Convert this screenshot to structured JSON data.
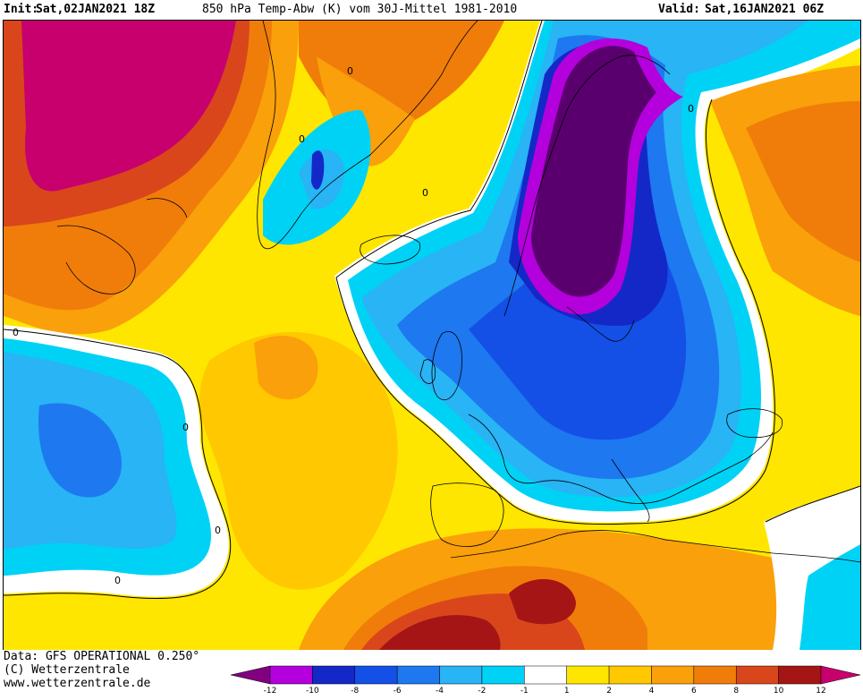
{
  "header": {
    "init_label": "Init:",
    "init_datetime": "Sat,02JAN2021 18Z",
    "product": "850 hPa Temp-Abw (K) vom 30J-Mittel 1981-2010",
    "valid_label": "Valid:",
    "valid_datetime": "Sat,16JAN2021 06Z"
  },
  "footer": {
    "data_source": "Data: GFS OPERATIONAL 0.250°",
    "copyright": "(C) Wetterzentrale",
    "website": "www.wetterzentrale.de"
  },
  "map": {
    "contour_label": "0",
    "palette": {
      "magenta": "#c8006e",
      "dark_red": "#a51515",
      "red_orange": "#d9461c",
      "orange": "#f07d0a",
      "light_orange": "#faa00a",
      "amber": "#ffc800",
      "yellow": "#ffe600",
      "near_zero": "#ffffff",
      "cyan": "#00d2f5",
      "light_blue": "#28b4f5",
      "blue": "#1e78f0",
      "mid_blue": "#1450e6",
      "dark_blue": "#1428c8",
      "violet": "#b400dc",
      "dark_purple": "#5a006e"
    }
  },
  "legend": {
    "ticks": [
      "-12",
      "-10",
      "-8",
      "-6",
      "-4",
      "-2",
      "-1",
      "1",
      "2",
      "4",
      "6",
      "8",
      "10",
      "12"
    ],
    "colors": [
      "#800080",
      "#b400dc",
      "#1428c8",
      "#1450e6",
      "#1e78f0",
      "#28b4f5",
      "#00d2f5",
      "#ffffff",
      "#ffe600",
      "#ffc800",
      "#faa00a",
      "#f07d0a",
      "#d9461c",
      "#a51515",
      "#c8006e"
    ]
  }
}
